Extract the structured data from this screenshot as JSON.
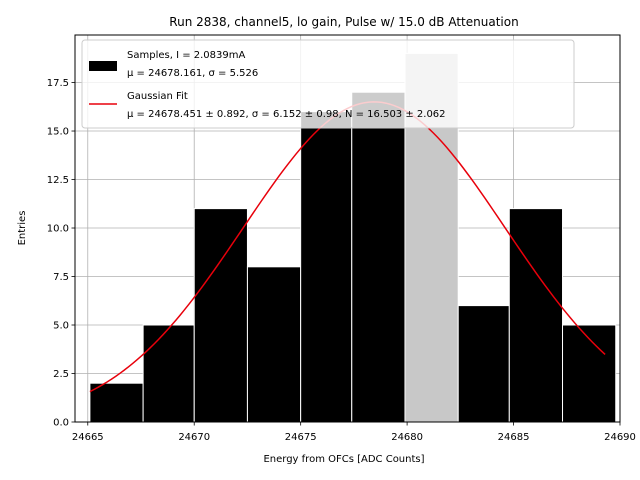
{
  "chart_data": {
    "type": "bar",
    "title": "Run 2838, channel5, lo gain, Pulse w/ 15.0 dB Attenuation",
    "xlabel": "Energy from OFCs [ADC Counts]",
    "ylabel": "Entries",
    "xlim": [
      24664.4,
      24690.0
    ],
    "ylim": [
      0,
      19.95
    ],
    "xticks": [
      24665,
      24670,
      24675,
      24680,
      24685,
      24690
    ],
    "yticks": [
      0.0,
      2.5,
      5.0,
      7.5,
      10.0,
      12.5,
      15.0,
      17.5
    ],
    "xtick_labels": [
      "24665",
      "24670",
      "24675",
      "24680",
      "24685",
      "24690"
    ],
    "ytick_labels": [
      "0.0",
      "2.5",
      "5.0",
      "7.5",
      "10.0",
      "12.5",
      "15.0",
      "17.5"
    ],
    "grid": true,
    "legend_position": "top-left",
    "bins": [
      {
        "left": 24665.1,
        "right": 24667.6,
        "count": 2
      },
      {
        "left": 24667.6,
        "right": 24670.0,
        "count": 5
      },
      {
        "left": 24670.0,
        "right": 24672.5,
        "count": 11
      },
      {
        "left": 24672.5,
        "right": 24675.0,
        "count": 8
      },
      {
        "left": 24675.0,
        "right": 24677.4,
        "count": 16
      },
      {
        "left": 24677.4,
        "right": 24679.9,
        "count": 17
      },
      {
        "left": 24679.9,
        "right": 24682.4,
        "count": 19
      },
      {
        "left": 24682.4,
        "right": 24684.8,
        "count": 6
      },
      {
        "left": 24684.8,
        "right": 24687.3,
        "count": 11
      },
      {
        "left": 24687.3,
        "right": 24689.8,
        "count": 5
      }
    ],
    "fit": {
      "mu": 24678.451,
      "sigma": 6.152,
      "N": 16.503,
      "x_range": [
        24665.1,
        24689.3
      ]
    },
    "series": [
      {
        "name": "Samples",
        "color": "#000000",
        "legend_line1": "Samples, I = 2.0839mA",
        "legend_line2": "μ = 24678.161, σ = 5.526"
      },
      {
        "name": "Gaussian Fit",
        "color": "#e8000b",
        "legend_line1": "Gaussian Fit",
        "legend_line2": "μ = 24678.451 ± 0.892, σ = 6.152 ± 0.98, N = 16.503 ± 2.062"
      }
    ]
  }
}
